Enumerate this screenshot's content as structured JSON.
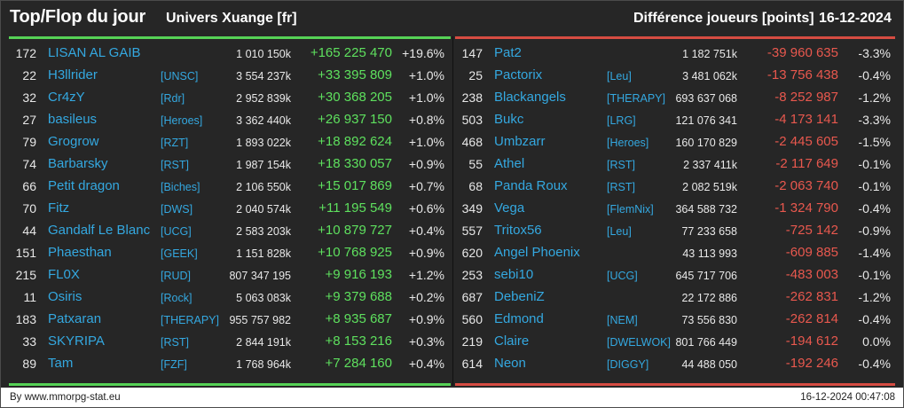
{
  "header": {
    "title": "Top/Flop du jour",
    "universe": "Univers Xuange [fr]",
    "metric": "Différence joueurs [points]",
    "date": "16-12-2024"
  },
  "colors": {
    "background": "#262626",
    "top_accent": "#56d256",
    "flop_accent": "#d64c42",
    "name_color": "#34a8e0",
    "positive": "#5ee05e",
    "negative": "#e8584e"
  },
  "top": [
    {
      "rank": "172",
      "name": "LISAN AL GAIB",
      "guild": "",
      "points": "1 010 150k",
      "diff": "+165 225 470",
      "pct": "+19.6%"
    },
    {
      "rank": "22",
      "name": "H3llrider",
      "guild": "[UNSC]",
      "points": "3 554 237k",
      "diff": "+33 395 809",
      "pct": "+1.0%"
    },
    {
      "rank": "32",
      "name": "Cr4zY",
      "guild": "[Rdr]",
      "points": "2 952 839k",
      "diff": "+30 368 205",
      "pct": "+1.0%"
    },
    {
      "rank": "27",
      "name": "basileus",
      "guild": "[Heroes]",
      "points": "3 362 440k",
      "diff": "+26 937 150",
      "pct": "+0.8%"
    },
    {
      "rank": "79",
      "name": "Grogrow",
      "guild": "[RZT]",
      "points": "1 893 022k",
      "diff": "+18 892 624",
      "pct": "+1.0%"
    },
    {
      "rank": "74",
      "name": "Barbarsky",
      "guild": "[RST]",
      "points": "1 987 154k",
      "diff": "+18 330 057",
      "pct": "+0.9%"
    },
    {
      "rank": "66",
      "name": "Petit dragon",
      "guild": "[Biches]",
      "points": "2 106 550k",
      "diff": "+15 017 869",
      "pct": "+0.7%"
    },
    {
      "rank": "70",
      "name": "Fitz",
      "guild": "[DWS]",
      "points": "2 040 574k",
      "diff": "+11 195 549",
      "pct": "+0.6%"
    },
    {
      "rank": "44",
      "name": "Gandalf Le Blanc",
      "guild": "[UCG]",
      "points": "2 583 203k",
      "diff": "+10 879 727",
      "pct": "+0.4%"
    },
    {
      "rank": "151",
      "name": "Phaesthan",
      "guild": "[GEEK]",
      "points": "1 151 828k",
      "diff": "+10 768 925",
      "pct": "+0.9%"
    },
    {
      "rank": "215",
      "name": "FL0X",
      "guild": "[RUD]",
      "points": "807 347 195",
      "diff": "+9 916 193",
      "pct": "+1.2%"
    },
    {
      "rank": "11",
      "name": "Osiris",
      "guild": "[Rock]",
      "points": "5 063 083k",
      "diff": "+9 379 688",
      "pct": "+0.2%"
    },
    {
      "rank": "183",
      "name": "Patxaran",
      "guild": "[THERAPY]",
      "points": "955 757 982",
      "diff": "+8 935 687",
      "pct": "+0.9%"
    },
    {
      "rank": "33",
      "name": "SKYRIPA",
      "guild": "[RST]",
      "points": "2 844 191k",
      "diff": "+8 153 216",
      "pct": "+0.3%"
    },
    {
      "rank": "89",
      "name": "Tam",
      "guild": "[FZF]",
      "points": "1 768 964k",
      "diff": "+7 284 160",
      "pct": "+0.4%"
    }
  ],
  "flop": [
    {
      "rank": "147",
      "name": "Pat2",
      "guild": "",
      "points": "1 182 751k",
      "diff": "-39 960 635",
      "pct": "-3.3%"
    },
    {
      "rank": "25",
      "name": "Pactorix",
      "guild": "[Leu]",
      "points": "3 481 062k",
      "diff": "-13 756 438",
      "pct": "-0.4%"
    },
    {
      "rank": "238",
      "name": "Blackangels",
      "guild": "[THERAPY]",
      "points": "693 637 068",
      "diff": "-8 252 987",
      "pct": "-1.2%"
    },
    {
      "rank": "503",
      "name": "Bukc",
      "guild": "[LRG]",
      "points": "121 076 341",
      "diff": "-4 173 141",
      "pct": "-3.3%"
    },
    {
      "rank": "468",
      "name": "Umbzarr",
      "guild": "[Heroes]",
      "points": "160 170 829",
      "diff": "-2 445 605",
      "pct": "-1.5%"
    },
    {
      "rank": "55",
      "name": "Athel",
      "guild": "[RST]",
      "points": "2 337 411k",
      "diff": "-2 117 649",
      "pct": "-0.1%"
    },
    {
      "rank": "68",
      "name": "Panda Roux",
      "guild": "[RST]",
      "points": "2 082 519k",
      "diff": "-2 063 740",
      "pct": "-0.1%"
    },
    {
      "rank": "349",
      "name": "Vega",
      "guild": "[FlemNix]",
      "points": "364 588 732",
      "diff": "-1 324 790",
      "pct": "-0.4%"
    },
    {
      "rank": "557",
      "name": "Tritox56",
      "guild": "[Leu]",
      "points": "77 233 658",
      "diff": "-725 142",
      "pct": "-0.9%"
    },
    {
      "rank": "620",
      "name": "Angel Phoenix",
      "guild": "",
      "points": "43 113 993",
      "diff": "-609 885",
      "pct": "-1.4%"
    },
    {
      "rank": "253",
      "name": "sebi10",
      "guild": "[UCG]",
      "points": "645 717 706",
      "diff": "-483 003",
      "pct": "-0.1%"
    },
    {
      "rank": "687",
      "name": "DebeniZ",
      "guild": "",
      "points": "22 172 886",
      "diff": "-262 831",
      "pct": "-1.2%"
    },
    {
      "rank": "560",
      "name": "Edmond",
      "guild": "[NEM]",
      "points": "73 556 830",
      "diff": "-262 814",
      "pct": "-0.4%"
    },
    {
      "rank": "219",
      "name": "Claire",
      "guild": "[DWELWOK]",
      "points": "801 766 449",
      "diff": "-194 612",
      "pct": "0.0%"
    },
    {
      "rank": "614",
      "name": "Neon",
      "guild": "[DIGGY]",
      "points": "44 488 050",
      "diff": "-192 246",
      "pct": "-0.4%"
    }
  ],
  "footer": {
    "site": "By www.mmorpg-stat.eu",
    "timestamp": "16-12-2024 00:47:08"
  }
}
